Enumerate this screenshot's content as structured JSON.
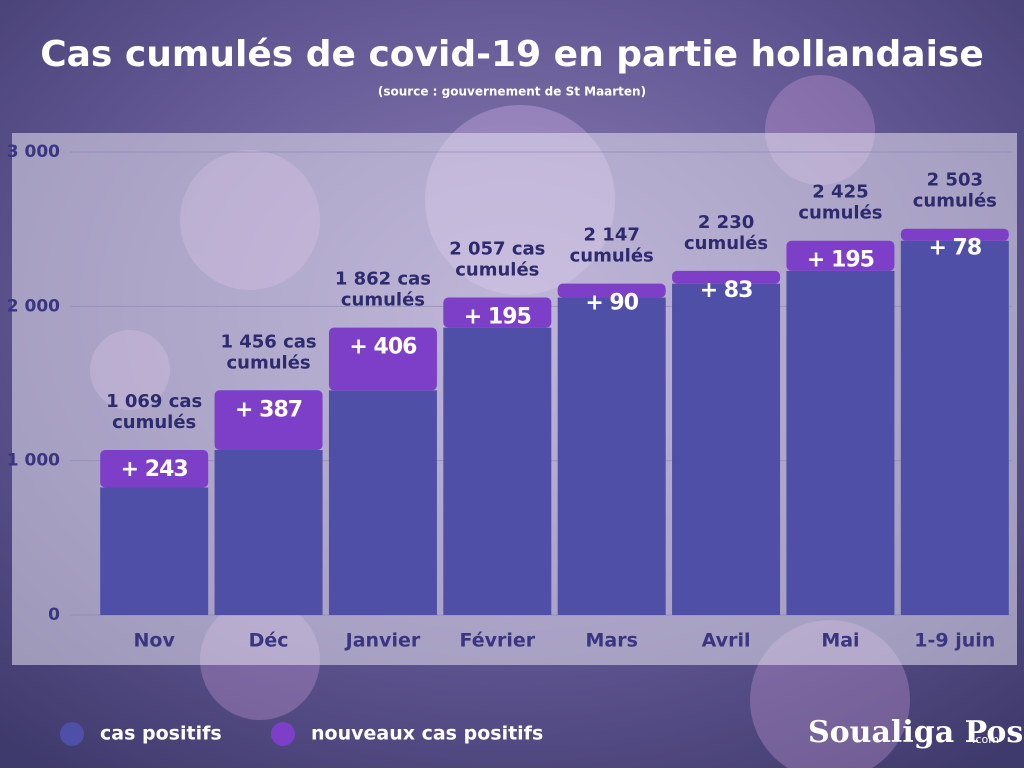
{
  "chart_data": {
    "type": "stacked_bar",
    "title": "Cas cumulés de covid-19 en partie hollandaise",
    "subtitle": "(source : gouvernement de St Maarten)",
    "categories": [
      "Nov",
      "Déc",
      "Janvier",
      "Février",
      "Mars",
      "Avril",
      "Mai",
      "1-9 juin"
    ],
    "series": [
      {
        "name": "cas positifs",
        "color": "#4f4fa8",
        "values": [
          826,
          1069,
          1456,
          1862,
          2057,
          2147,
          2230,
          2425
        ]
      },
      {
        "name": "nouveaux cas positifs",
        "color": "#7d3fc8",
        "values": [
          243,
          387,
          406,
          195,
          90,
          83,
          195,
          78
        ],
        "value_labels": [
          "+ 243",
          "+ 387",
          "+ 406",
          "+ 195",
          "+ 90",
          "+ 83",
          "+ 195",
          "+ 78"
        ]
      }
    ],
    "total_labels": [
      [
        "1 069 cas",
        "cumulés"
      ],
      [
        "1 456 cas",
        "cumulés"
      ],
      [
        "1 862 cas",
        "cumulés"
      ],
      [
        "2 057 cas",
        "cumulés"
      ],
      [
        "2 147",
        "cumulés"
      ],
      [
        "2 230",
        "cumulés"
      ],
      [
        "2 425",
        "cumulés"
      ],
      [
        "2 503",
        "cumulés"
      ]
    ],
    "ylim": [
      0,
      3000
    ],
    "yticks": [
      0,
      {
        "value": 1000,
        "label": "1 000"
      },
      {
        "value": 2000,
        "label": "2 000"
      },
      {
        "value": 3000,
        "label": "3 000"
      }
    ],
    "grid": true,
    "legend": "bottom-left",
    "logo": "Soualiga Post",
    "logo_suffix": ".com"
  }
}
